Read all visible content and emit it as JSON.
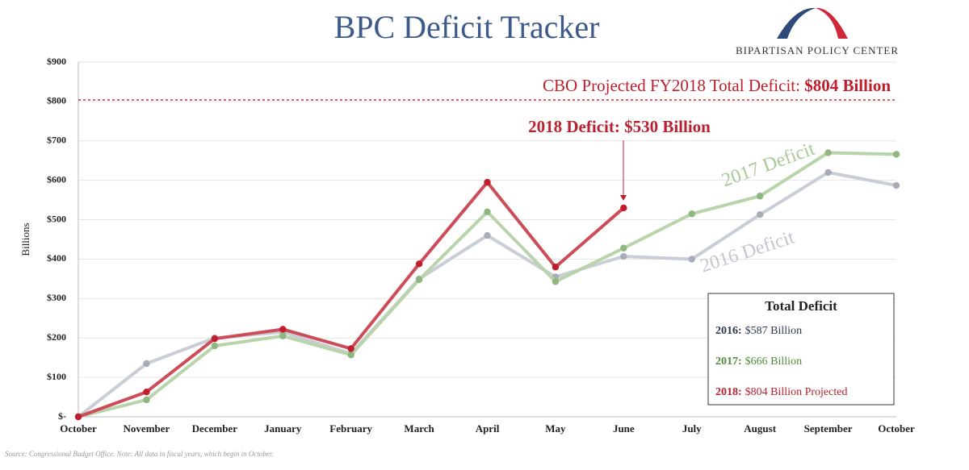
{
  "chart_data": {
    "type": "line",
    "title": "BPC Deficit Tracker",
    "logo_text": "BIPARTISAN POLICY CENTER",
    "y_label": "Billions",
    "categories": [
      "October",
      "November",
      "December",
      "January",
      "February",
      "March",
      "April",
      "May",
      "June",
      "July",
      "August",
      "September",
      "October"
    ],
    "series": [
      {
        "name": "2016 Deficit",
        "color": "#c9cdd6",
        "point_color": "#a8acb8",
        "values": [
          0,
          135,
          200,
          215,
          160,
          350,
          460,
          355,
          407,
          400,
          513,
          620,
          587
        ]
      },
      {
        "name": "2017 Deficit",
        "color": "#b7d4aa",
        "point_color": "#8fb67f",
        "values": [
          0,
          43,
          180,
          205,
          157,
          348,
          520,
          343,
          428,
          515,
          560,
          670,
          666
        ]
      },
      {
        "name": "2018",
        "color": "#cc4d58",
        "point_color": "#c01e2c",
        "values": [
          0,
          63,
          198,
          222,
          173,
          388,
          595,
          380,
          530,
          null,
          null,
          null,
          null
        ]
      }
    ],
    "ylim": [
      0,
      900
    ],
    "yticks": [
      {
        "value": 0,
        "label": "$-"
      },
      {
        "value": 100,
        "label": "$100"
      },
      {
        "value": 200,
        "label": "$200"
      },
      {
        "value": 300,
        "label": "$300"
      },
      {
        "value": 400,
        "label": "$400"
      },
      {
        "value": 500,
        "label": "$500"
      },
      {
        "value": 600,
        "label": "$600"
      },
      {
        "value": 700,
        "label": "$700"
      },
      {
        "value": 800,
        "label": "$800"
      },
      {
        "value": 900,
        "label": "$900"
      }
    ],
    "grid": true,
    "reference_line": {
      "value": 804,
      "label": "CBO Projected FY2018 Total Deficit: ",
      "label_bold": "$804 Billion",
      "color": "#c01e2c"
    },
    "annotation": "2018 Deficit: $530 Billion",
    "total_box": {
      "title": "Total Deficit",
      "entries": [
        {
          "year": "2016:",
          "amount": "$587 Billion",
          "color": "#2e3a4f"
        },
        {
          "year": "2017:",
          "amount": "$666 Billion",
          "color": "#4f8a3a"
        },
        {
          "year": "2018:",
          "amount": "$804 Billion Projected",
          "color": "#b8212f"
        }
      ]
    },
    "source": "Source: Congressional Budget Office. Note: All data in fiscal years, which begin in October."
  }
}
